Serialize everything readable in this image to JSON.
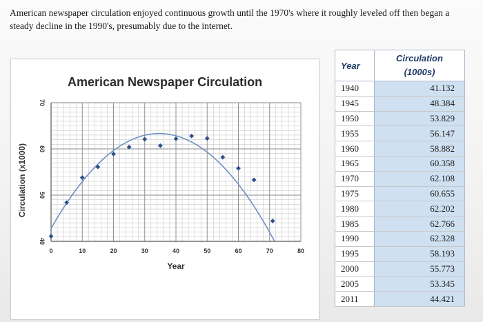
{
  "intro_text": "American newspaper circulation enjoyed continuous growth until the 1970's where it roughly leveled off then began a steady decline in the 1990's, presumably due to the internet.",
  "table": {
    "headers": {
      "year": "Year",
      "circulation": "Circulation",
      "circulation_unit": "(1000s)"
    },
    "rows": [
      {
        "year": "1940",
        "value": "41.132"
      },
      {
        "year": "1945",
        "value": "48.384"
      },
      {
        "year": "1950",
        "value": "53.829"
      },
      {
        "year": "1955",
        "value": "56.147"
      },
      {
        "year": "1960",
        "value": "58.882"
      },
      {
        "year": "1965",
        "value": "60.358"
      },
      {
        "year": "1970",
        "value": "62.108"
      },
      {
        "year": "1975",
        "value": "60.655"
      },
      {
        "year": "1980",
        "value": "62.202"
      },
      {
        "year": "1985",
        "value": "62.766"
      },
      {
        "year": "1990",
        "value": "62.328"
      },
      {
        "year": "1995",
        "value": "58.193"
      },
      {
        "year": "2000",
        "value": "55.773"
      },
      {
        "year": "2005",
        "value": "53.345"
      },
      {
        "year": "2011",
        "value": "44.421"
      }
    ]
  },
  "chart_data": {
    "type": "scatter",
    "title": "American Newspaper Circulation",
    "xlabel": "Year",
    "ylabel": "Circulation (x1000)",
    "xlim": [
      0,
      80
    ],
    "ylim": [
      40,
      70
    ],
    "xticks": [
      "0",
      "10",
      "20",
      "30",
      "40",
      "50",
      "60",
      "70",
      "80"
    ],
    "yticks": [
      "40",
      "50",
      "60",
      "70"
    ],
    "grid": true,
    "point_color": "#2b4f8a",
    "curve_color": "#6f8fc2",
    "points": [
      [
        0,
        41.1
      ],
      [
        5,
        48.4
      ],
      [
        10,
        53.8
      ],
      [
        15,
        56.1
      ],
      [
        20,
        58.9
      ],
      [
        25,
        60.4
      ],
      [
        30,
        62.1
      ],
      [
        35,
        60.7
      ],
      [
        40,
        62.2
      ],
      [
        45,
        62.8
      ],
      [
        50,
        62.3
      ],
      [
        55,
        58.2
      ],
      [
        60,
        55.8
      ],
      [
        65,
        53.3
      ],
      [
        71,
        44.4
      ]
    ],
    "trend_coefficients": [
      42.78,
      1.186,
      -0.01711
    ]
  }
}
